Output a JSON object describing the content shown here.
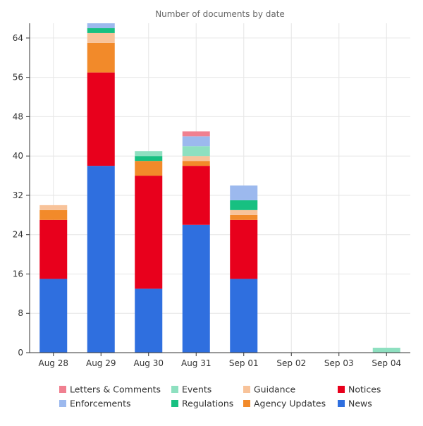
{
  "chart_data": {
    "type": "bar",
    "stacked": true,
    "title": "Number of documents by date",
    "xlabel": "",
    "ylabel": "",
    "categories": [
      "Aug 28",
      "Aug 29",
      "Aug 30",
      "Aug 31",
      "Sep 01",
      "Sep 02",
      "Sep 03",
      "Sep 04"
    ],
    "ylim": [
      0,
      67
    ],
    "yticks": [
      0,
      8,
      16,
      24,
      32,
      40,
      48,
      56,
      64
    ],
    "grid": true,
    "legend_position": "bottom",
    "series": [
      {
        "name": "News",
        "color": "#2f6fdf",
        "values": [
          15,
          38,
          13,
          26,
          15,
          0,
          0,
          0
        ]
      },
      {
        "name": "Notices",
        "color": "#e8001c",
        "values": [
          12,
          19,
          23,
          12,
          12,
          0,
          0,
          0
        ]
      },
      {
        "name": "Agency Updates",
        "color": "#f28a2a",
        "values": [
          2,
          6,
          3,
          1,
          1,
          0,
          0,
          0
        ]
      },
      {
        "name": "Guidance",
        "color": "#f8c39a",
        "values": [
          1,
          2,
          0,
          1,
          1,
          0,
          0,
          0
        ]
      },
      {
        "name": "Regulations",
        "color": "#17c081",
        "values": [
          0,
          1,
          1,
          0,
          2,
          0,
          0,
          0
        ]
      },
      {
        "name": "Events",
        "color": "#8ee0c0",
        "values": [
          0,
          0,
          1,
          2,
          0,
          0,
          0,
          1
        ]
      },
      {
        "name": "Enforcements",
        "color": "#9cb9ee",
        "values": [
          0,
          1,
          0,
          2,
          3,
          0,
          0,
          0
        ]
      },
      {
        "name": "Letters & Comments",
        "color": "#f08090",
        "values": [
          0,
          0,
          0,
          1,
          0,
          0,
          0,
          0
        ]
      }
    ],
    "legend_order": [
      "Letters & Comments",
      "Events",
      "Guidance",
      "Notices",
      "Enforcements",
      "Regulations",
      "Agency Updates",
      "News"
    ]
  }
}
